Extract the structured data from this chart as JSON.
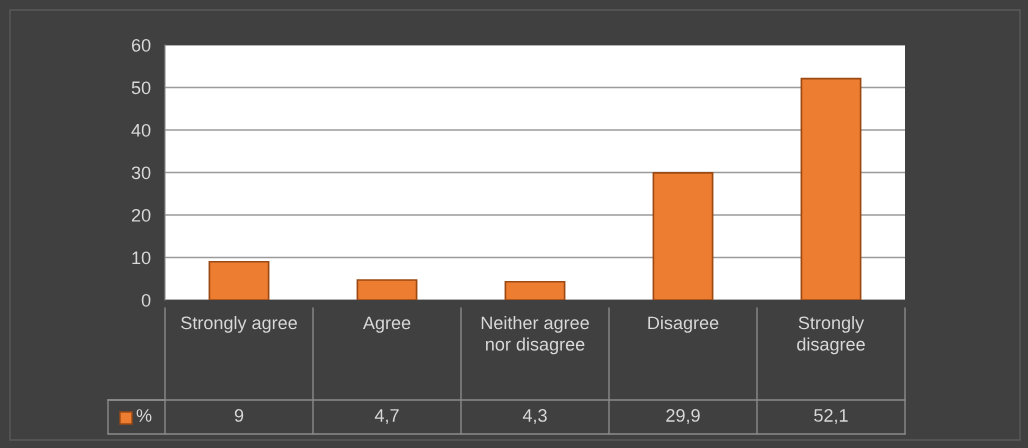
{
  "chart_data": {
    "type": "bar",
    "categories": [
      "Strongly agree",
      "Agree",
      "Neither agree nor disagree",
      "Disagree",
      "Strongly disagree"
    ],
    "series": [
      {
        "name": "%",
        "color": "#ed7d31",
        "values": [
          9,
          4.7,
          4.3,
          29.9,
          52.1
        ],
        "value_labels": [
          "9",
          "4,7",
          "4,3",
          "29,9",
          "52,1"
        ]
      }
    ],
    "ylim": [
      0,
      60
    ],
    "yticks": [
      0,
      10,
      20,
      30,
      40,
      50,
      60
    ],
    "grid": "y",
    "legend": "bottom"
  }
}
